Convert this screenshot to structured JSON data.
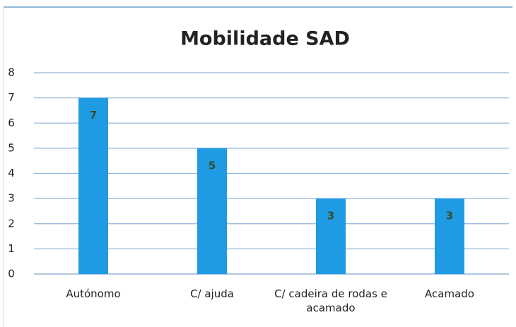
{
  "chart_data": {
    "type": "bar",
    "title": "Mobilidade SAD",
    "categories": [
      "Autónomo",
      "C/ ajuda",
      "C/ cadeira de rodas e acamado",
      "Acamado"
    ],
    "values": [
      7,
      5,
      3,
      3
    ],
    "color": "#1e9be3",
    "ylim": [
      0,
      8
    ],
    "yticks": [
      0,
      1,
      2,
      3,
      4,
      5,
      6,
      7,
      8
    ],
    "grid": true
  }
}
